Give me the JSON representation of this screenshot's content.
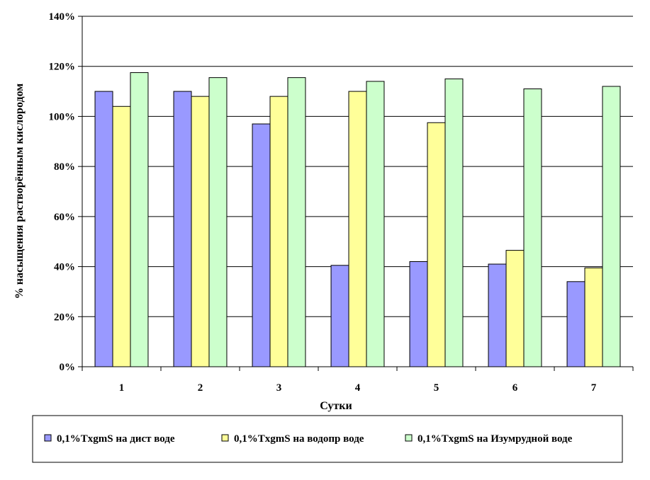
{
  "chart_data": {
    "type": "bar",
    "title": "",
    "xlabel": "Сутки",
    "ylabel": "% насыщения растворённым кислородом",
    "categories": [
      "1",
      "2",
      "3",
      "4",
      "5",
      "6",
      "7"
    ],
    "ylim": [
      0,
      140
    ],
    "y_ticks": [
      "0%",
      "20%",
      "40%",
      "60%",
      "80%",
      "100%",
      "120%",
      "140%"
    ],
    "grid": true,
    "legend_position": "bottom",
    "series": [
      {
        "name": "0,1%TxgmS на дист воде",
        "color": "#9999ff",
        "values": [
          110,
          110,
          97,
          40.5,
          42,
          41,
          34
        ]
      },
      {
        "name": "0,1%TxgmS на водопр воде",
        "color": "#ffff99",
        "values": [
          104,
          108,
          108,
          110,
          97.5,
          46.5,
          39.5
        ]
      },
      {
        "name": "0,1%TxgmS на Изумрудной воде",
        "color": "#ccffcc",
        "values": [
          117.5,
          115.5,
          115.5,
          114,
          115,
          111,
          112
        ]
      }
    ]
  }
}
